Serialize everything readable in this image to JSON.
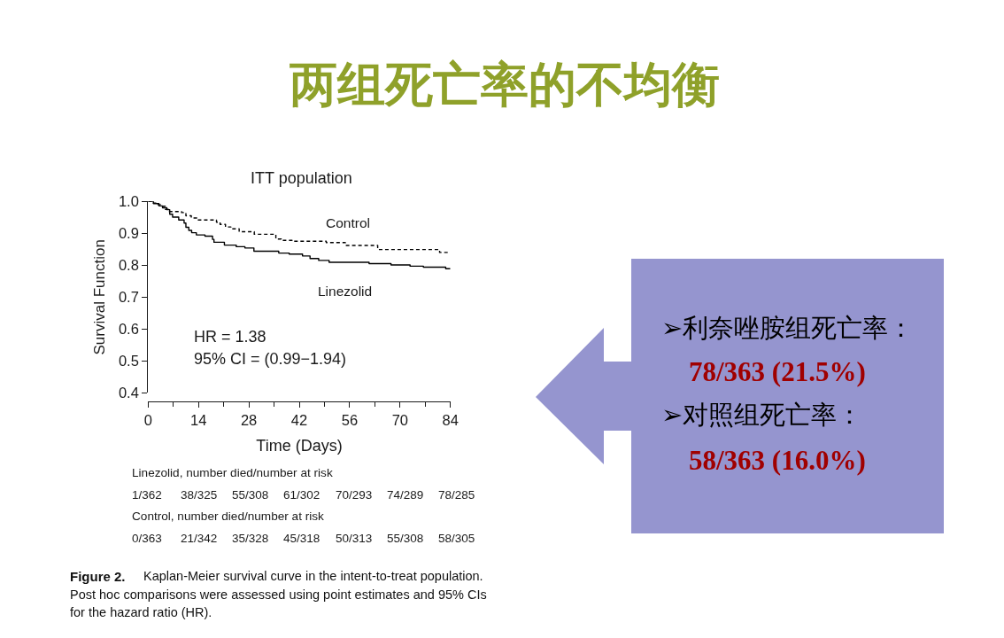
{
  "chart_data": {
    "type": "step",
    "title": "两组死亡率的不均衡",
    "subtitle": "ITT population",
    "xlabel": "Time (Days)",
    "ylabel": "Survival Function",
    "xlim": [
      0,
      84
    ],
    "ylim": [
      0.4,
      1.0
    ],
    "xticks": [
      0,
      {
        "value": 7,
        "label": null
      },
      14,
      {
        "value": 21,
        "label": null
      },
      28,
      {
        "value": 35,
        "label": null
      },
      42,
      {
        "value": 49,
        "label": null
      },
      56,
      {
        "value": 63,
        "label": null
      },
      70,
      {
        "value": 77,
        "label": null
      },
      84
    ],
    "yticks": [
      0.4,
      0.5,
      0.6,
      0.7,
      0.8,
      0.9,
      {
        "value": 1.0,
        "label": "1.0"
      }
    ],
    "legend": false,
    "series": [
      {
        "name": "Linezolid",
        "color": "#000000",
        "line_style": "solid",
        "x": [
          0,
          1.5,
          3,
          4,
          5.2,
          6,
          6.8,
          8.5,
          10,
          10.5,
          11.3,
          12.1,
          13.4,
          15.8,
          17.9,
          18.3,
          21.2,
          24.5,
          26.9,
          29.4,
          36.3,
          39.2,
          42.9,
          45,
          47.4,
          50.3,
          61.4,
          67.5,
          72.8,
          76.5,
          82.7,
          84
        ],
        "values": [
          1.0,
          0.993,
          0.986,
          0.98,
          0.974,
          0.96,
          0.951,
          0.942,
          0.932,
          0.919,
          0.909,
          0.902,
          0.895,
          0.891,
          0.881,
          0.872,
          0.863,
          0.858,
          0.854,
          0.844,
          0.838,
          0.835,
          0.829,
          0.821,
          0.815,
          0.809,
          0.805,
          0.801,
          0.797,
          0.794,
          0.789,
          0.789
        ]
      },
      {
        "name": "Control",
        "color": "#000000",
        "line_style": "dashed",
        "x": [
          0,
          1,
          2.5,
          4,
          4.8,
          5.6,
          9.3,
          10.5,
          12,
          13.5,
          19,
          20,
          21.5,
          23,
          25.3,
          29.5,
          35.5,
          37,
          40,
          49.5,
          54.8,
          63.8,
          81,
          84
        ],
        "values": [
          1.0,
          0.995,
          0.99,
          0.985,
          0.975,
          0.968,
          0.965,
          0.955,
          0.948,
          0.942,
          0.935,
          0.928,
          0.92,
          0.914,
          0.905,
          0.897,
          0.882,
          0.878,
          0.875,
          0.871,
          0.862,
          0.849,
          0.84,
          0.84
        ]
      }
    ],
    "annotations": [
      "HR = 1.38",
      "95% CI = (0.99−1.94)",
      "Linezolid, number died/number at risk",
      "1/362",
      "38/325",
      "55/308",
      "61/302",
      "70/293",
      "74/289",
      "78/285",
      "Control, number died/number at risk",
      "0/363",
      "21/342",
      "35/328",
      "45/318",
      "50/313",
      "55/308",
      "58/305",
      "Figure 2.",
      "Kaplan-Meier survival curve in the intent-to-treat population.",
      "Post hoc comparisons were assessed using point estimates and 95% CIs",
      "for the hazard ratio (HR).",
      "➢利奈唑胺组死亡率：",
      "78/363 (21.5%)",
      "➢对照组死亡率：",
      "58/363 (16.0%)"
    ]
  }
}
